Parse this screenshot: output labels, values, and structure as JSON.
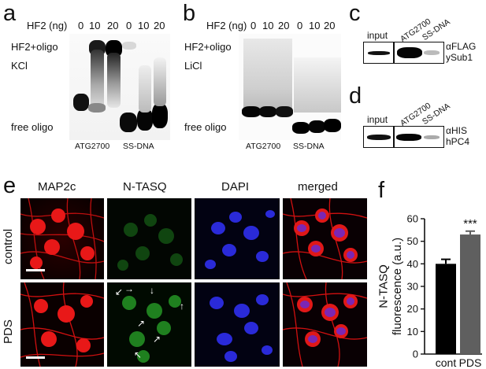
{
  "panel_letters": {
    "a": "a",
    "b": "b",
    "c": "c",
    "d": "d",
    "e": "e",
    "f": "f"
  },
  "panel_a": {
    "hf2_label": "HF2 (ng)",
    "doses": [
      "0",
      "10",
      "20",
      "0",
      "10",
      "20"
    ],
    "line1": "HF2+oligo",
    "line2": "KCl",
    "free_label": "free oligo",
    "lane_groups": [
      "ATG2700",
      "SS-DNA"
    ]
  },
  "panel_b": {
    "hf2_label": "HF2 (ng)",
    "doses": [
      "0",
      "10",
      "20",
      "0",
      "10",
      "20"
    ],
    "line1": "HF2+oligo",
    "line2": "LiCl",
    "free_label": "free oligo",
    "lane_groups": [
      "ATG2700",
      "SS-DNA"
    ]
  },
  "panel_c": {
    "lanes": [
      "input",
      "ATG2700",
      "SS-DNA"
    ],
    "antibody": "αFLAG",
    "protein": "ySub1"
  },
  "panel_d": {
    "lanes": [
      "input",
      "ATG2700",
      "SS-DNA"
    ],
    "antibody": "αHIS",
    "protein": "hPC4"
  },
  "panel_e": {
    "columns": [
      "MAP2c",
      "N-TASQ",
      "DAPI",
      "merged"
    ],
    "rows": [
      "control",
      "PDS"
    ]
  },
  "chart_data": {
    "type": "bar",
    "categories": [
      "cont",
      "PDS"
    ],
    "values": [
      40,
      53
    ],
    "errors": [
      2,
      1.5
    ],
    "ylabel": "N-TASQ fluorescence (a.u.)",
    "ylim": [
      0,
      60
    ],
    "yticks": [
      "0",
      "10",
      "20",
      "30",
      "40",
      "50",
      "60"
    ],
    "annotation": "***",
    "colors": [
      "#000000",
      "#5f5f5f"
    ]
  }
}
